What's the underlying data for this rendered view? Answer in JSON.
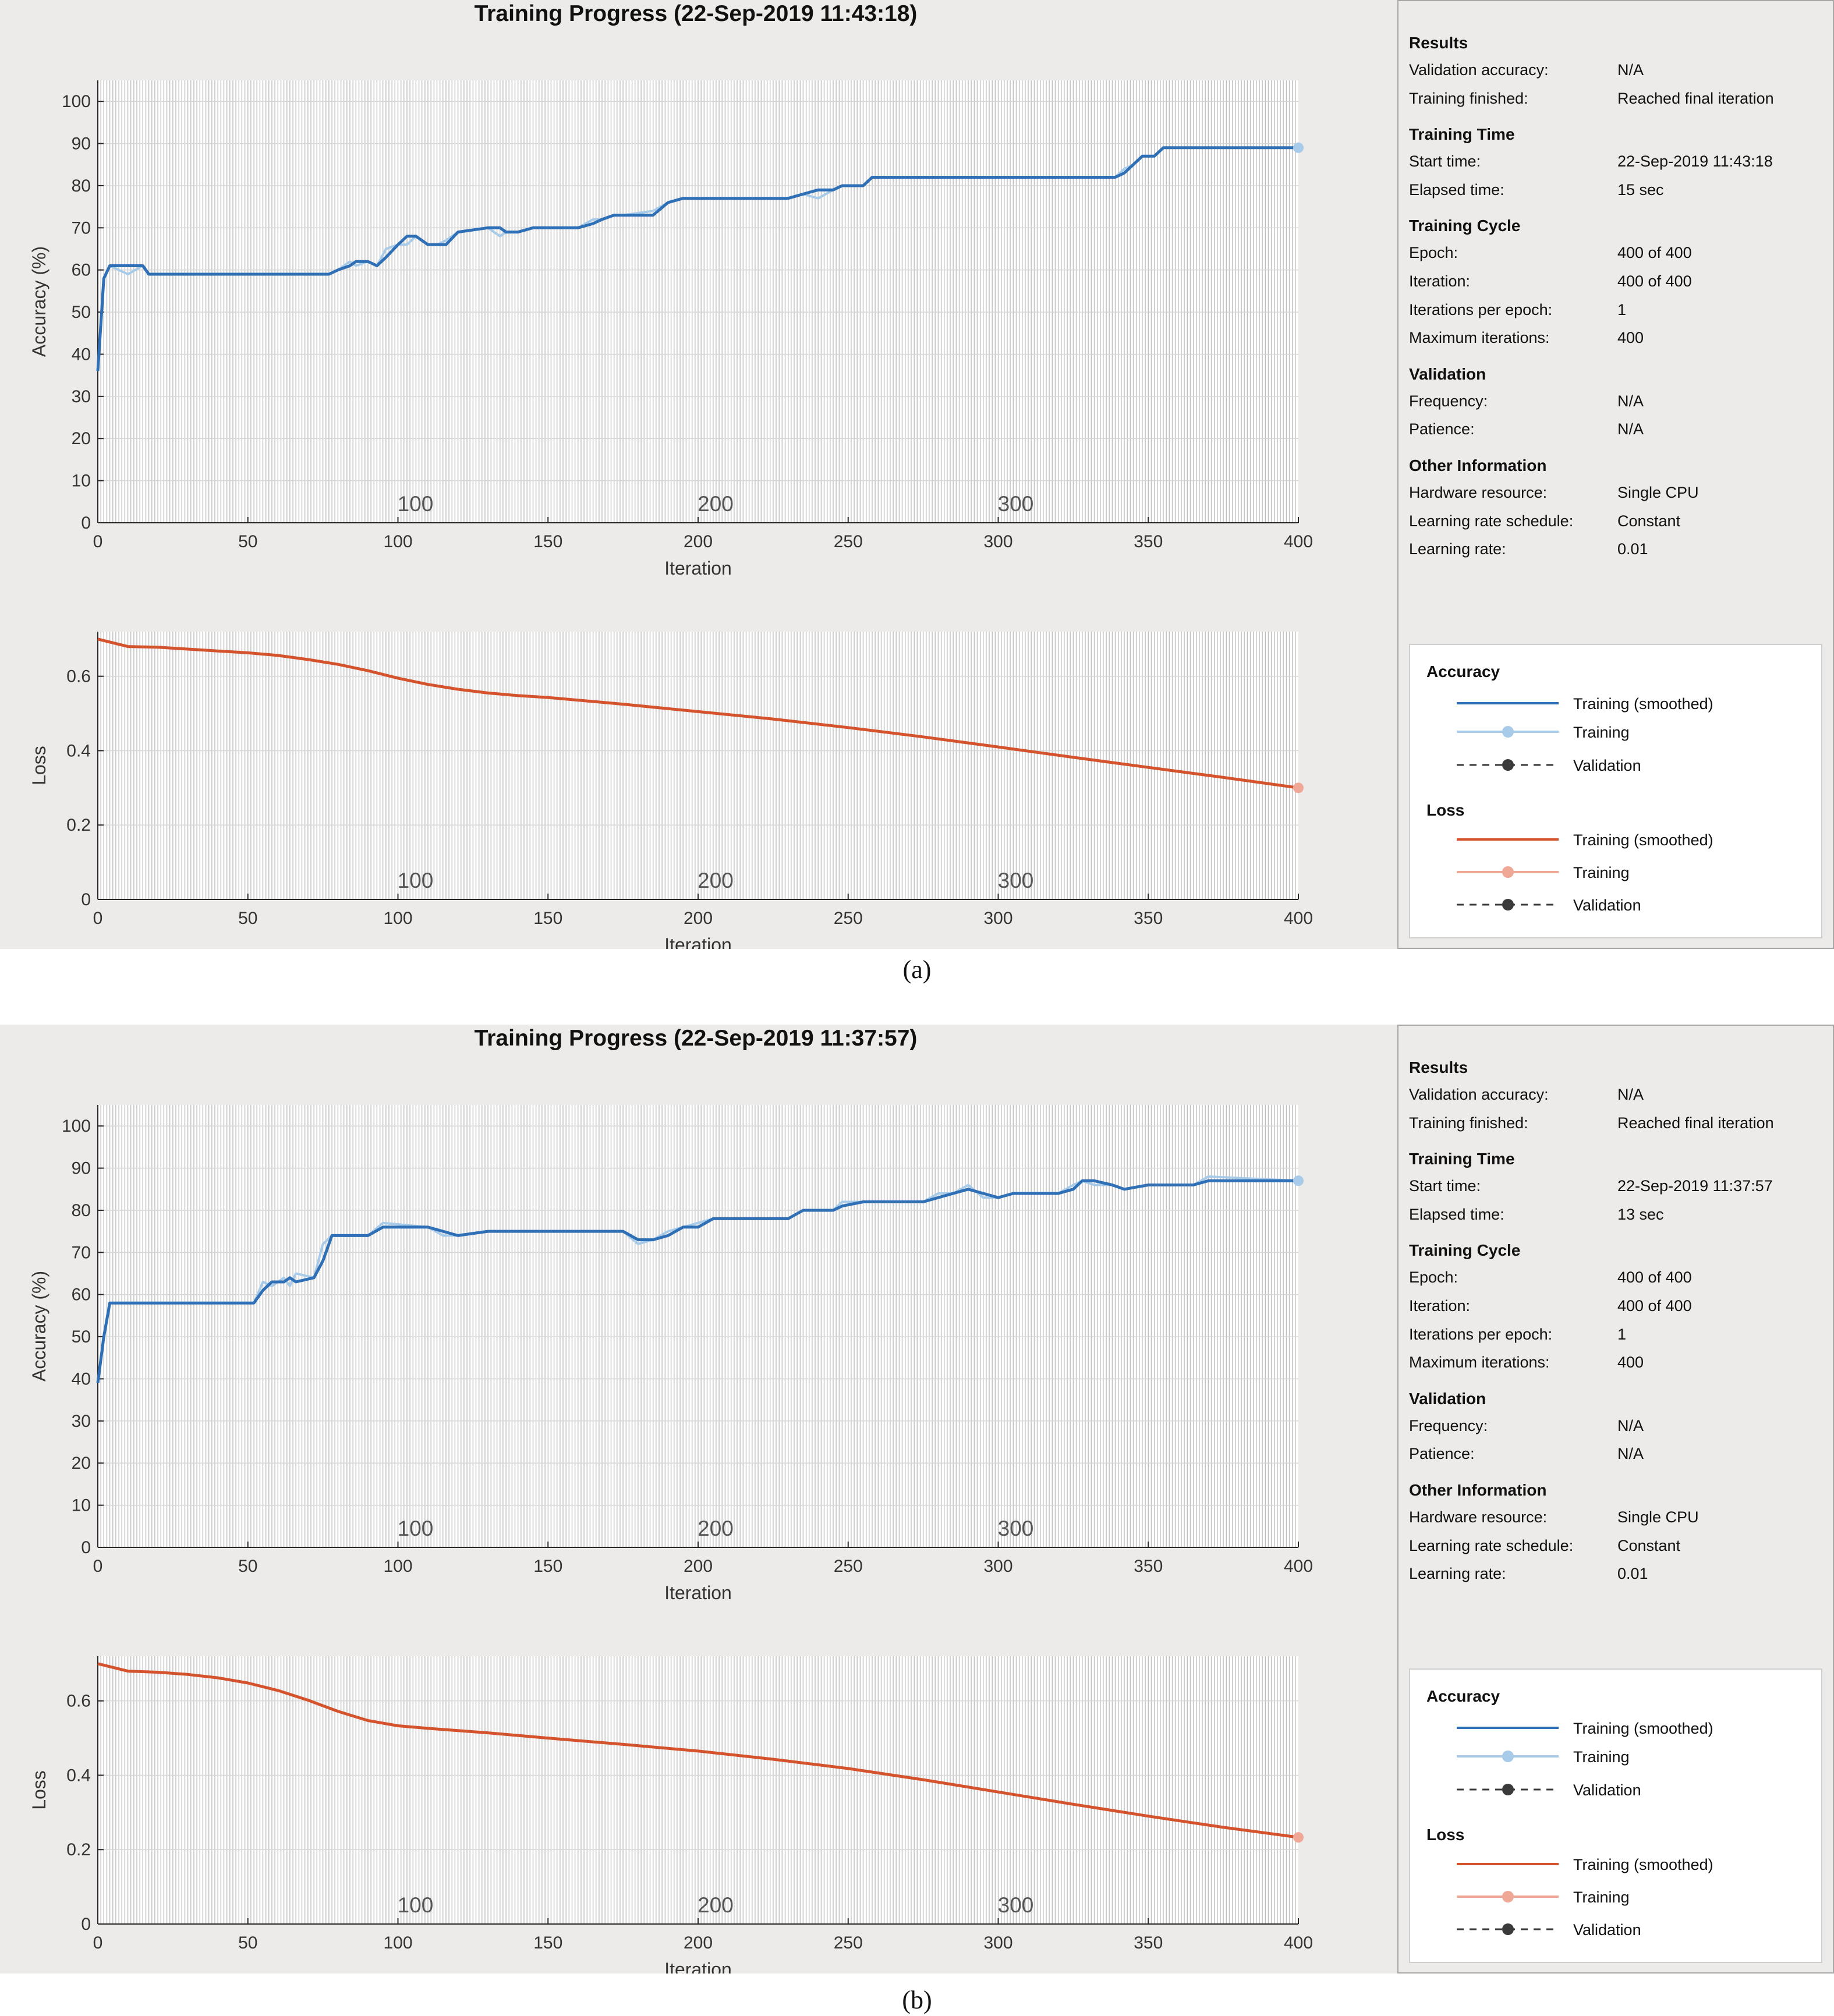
{
  "figures": [
    {
      "id": "a",
      "title": "Training Progress (22-Sep-2019 11:43:18)",
      "caption": "(a)",
      "info": [
        {
          "heading": "Results",
          "rows": [
            [
              "Validation accuracy:",
              "N/A"
            ],
            [
              "Training finished:",
              "Reached final iteration"
            ]
          ]
        },
        {
          "heading": "Training Time",
          "rows": [
            [
              "Start time:",
              "22-Sep-2019 11:43:18"
            ],
            [
              "Elapsed time:",
              "15 sec"
            ]
          ]
        },
        {
          "heading": "Training Cycle",
          "rows": [
            [
              "Epoch:",
              "400 of 400"
            ],
            [
              "Iteration:",
              "400 of 400"
            ],
            [
              "Iterations per epoch:",
              "1"
            ],
            [
              "Maximum iterations:",
              "400"
            ]
          ]
        },
        {
          "heading": "Validation",
          "rows": [
            [
              "Frequency:",
              "N/A"
            ],
            [
              "Patience:",
              "N/A"
            ]
          ]
        },
        {
          "heading": "Other Information",
          "rows": [
            [
              "Hardware resource:",
              "Single CPU"
            ],
            [
              "Learning rate schedule:",
              "Constant"
            ],
            [
              "Learning rate:",
              "0.01"
            ]
          ]
        }
      ],
      "legend": {
        "accuracy_heading": "Accuracy",
        "loss_heading": "Loss",
        "smoothed_label": "Training (smoothed)",
        "training_label": "Training",
        "validation_label": "Validation"
      }
    },
    {
      "id": "b",
      "title": "Training Progress (22-Sep-2019 11:37:57)",
      "caption": "(b)",
      "info": [
        {
          "heading": "Results",
          "rows": [
            [
              "Validation accuracy:",
              "N/A"
            ],
            [
              "Training finished:",
              "Reached final iteration"
            ]
          ]
        },
        {
          "heading": "Training Time",
          "rows": [
            [
              "Start time:",
              "22-Sep-2019 11:37:57"
            ],
            [
              "Elapsed time:",
              "13 sec"
            ]
          ]
        },
        {
          "heading": "Training Cycle",
          "rows": [
            [
              "Epoch:",
              "400 of 400"
            ],
            [
              "Iteration:",
              "400 of 400"
            ],
            [
              "Iterations per epoch:",
              "1"
            ],
            [
              "Maximum iterations:",
              "400"
            ]
          ]
        },
        {
          "heading": "Validation",
          "rows": [
            [
              "Frequency:",
              "N/A"
            ],
            [
              "Patience:",
              "N/A"
            ]
          ]
        },
        {
          "heading": "Other Information",
          "rows": [
            [
              "Hardware resource:",
              "Single CPU"
            ],
            [
              "Learning rate schedule:",
              "Constant"
            ],
            [
              "Learning rate:",
              "0.01"
            ]
          ]
        }
      ],
      "legend": {
        "accuracy_heading": "Accuracy",
        "loss_heading": "Loss",
        "smoothed_label": "Training (smoothed)",
        "training_label": "Training",
        "validation_label": "Validation"
      }
    }
  ],
  "colors": {
    "accuracy_smoothed": "#2f6fb5",
    "accuracy_raw": "#a7cbe8",
    "loss_smoothed": "#d4532d",
    "loss_raw": "#f0a896",
    "validation": "#3a3a3a",
    "epoch_lines": "#bdbdbd"
  },
  "chart_data": [
    {
      "type": "line",
      "figure": "a",
      "panel": "accuracy",
      "xlabel": "Iteration",
      "ylabel": "Accuracy (%)",
      "xlim": [
        0,
        400
      ],
      "ylim": [
        0,
        105
      ],
      "xticks": [
        0,
        50,
        100,
        150,
        200,
        250,
        300,
        350,
        400
      ],
      "yticks": [
        0,
        10,
        20,
        30,
        40,
        50,
        60,
        70,
        80,
        90,
        100
      ],
      "epoch_labels": [
        100,
        200,
        300
      ],
      "series": [
        {
          "name": "Training (smoothed)",
          "x": [
            0,
            2,
            4,
            10,
            15,
            17,
            20,
            50,
            77,
            80,
            84,
            86,
            90,
            93,
            96,
            100,
            103,
            106,
            110,
            113,
            116,
            120,
            130,
            134,
            136,
            140,
            145,
            160,
            165,
            168,
            172,
            175,
            185,
            190,
            195,
            230,
            235,
            240,
            245,
            248,
            255,
            258,
            262,
            280,
            300,
            320,
            339,
            342,
            345,
            348,
            352,
            355,
            370,
            400
          ],
          "y": [
            36,
            58,
            61,
            61,
            61,
            59,
            59,
            59,
            59,
            60,
            61,
            62,
            62,
            61,
            63,
            66,
            68,
            68,
            66,
            66,
            66,
            69,
            70,
            70,
            69,
            69,
            70,
            70,
            71,
            72,
            73,
            73,
            73,
            76,
            77,
            77,
            78,
            79,
            79,
            80,
            80,
            82,
            82,
            82,
            82,
            82,
            82,
            83,
            85,
            87,
            87,
            89,
            89,
            89
          ]
        },
        {
          "name": "Training",
          "x": [
            0,
            2,
            4,
            10,
            15,
            17,
            20,
            50,
            77,
            80,
            84,
            86,
            90,
            93,
            96,
            100,
            103,
            106,
            110,
            113,
            116,
            120,
            130,
            134,
            136,
            140,
            145,
            160,
            165,
            168,
            172,
            175,
            185,
            190,
            195,
            230,
            235,
            240,
            245,
            248,
            255,
            258,
            262,
            280,
            300,
            320,
            339,
            342,
            345,
            348,
            352,
            355,
            370,
            400
          ],
          "y": [
            36,
            58,
            61,
            59,
            61,
            59,
            59,
            59,
            59,
            60,
            62,
            61,
            62,
            61,
            65,
            66,
            66,
            68,
            66,
            66,
            67,
            69,
            70,
            68,
            69,
            69,
            70,
            70,
            72,
            72,
            73,
            73,
            74,
            76,
            77,
            77,
            78,
            77,
            79,
            80,
            80,
            82,
            82,
            82,
            82,
            82,
            82,
            84,
            85,
            87,
            87,
            89,
            89,
            89
          ]
        }
      ]
    },
    {
      "type": "line",
      "figure": "a",
      "panel": "loss",
      "xlabel": "Iteration",
      "ylabel": "Loss",
      "xlim": [
        0,
        400
      ],
      "ylim": [
        0,
        0.72
      ],
      "xticks": [
        0,
        50,
        100,
        150,
        200,
        250,
        300,
        350,
        400
      ],
      "yticks": [
        0,
        0.2,
        0.4,
        0.6
      ],
      "epoch_labels": [
        100,
        200,
        300
      ],
      "series": [
        {
          "name": "Training (smoothed)",
          "x": [
            0,
            10,
            20,
            30,
            40,
            50,
            60,
            70,
            80,
            90,
            100,
            110,
            120,
            130,
            140,
            150,
            175,
            200,
            225,
            250,
            275,
            300,
            325,
            350,
            375,
            400
          ],
          "y": [
            0.7,
            0.68,
            0.678,
            0.673,
            0.668,
            0.663,
            0.656,
            0.645,
            0.632,
            0.615,
            0.595,
            0.578,
            0.565,
            0.555,
            0.548,
            0.543,
            0.525,
            0.505,
            0.485,
            0.462,
            0.437,
            0.41,
            0.382,
            0.355,
            0.328,
            0.3
          ]
        },
        {
          "name": "Training",
          "x": [
            0,
            10,
            20,
            30,
            40,
            50,
            60,
            70,
            80,
            90,
            100,
            110,
            120,
            130,
            140,
            150,
            175,
            200,
            225,
            250,
            275,
            300,
            325,
            350,
            375,
            400
          ],
          "y": [
            0.7,
            0.68,
            0.678,
            0.673,
            0.668,
            0.663,
            0.656,
            0.645,
            0.632,
            0.615,
            0.595,
            0.578,
            0.565,
            0.555,
            0.548,
            0.543,
            0.525,
            0.505,
            0.485,
            0.462,
            0.437,
            0.41,
            0.382,
            0.355,
            0.328,
            0.3
          ]
        }
      ]
    },
    {
      "type": "line",
      "figure": "b",
      "panel": "accuracy",
      "xlabel": "Iteration",
      "ylabel": "Accuracy (%)",
      "xlim": [
        0,
        400
      ],
      "ylim": [
        0,
        105
      ],
      "xticks": [
        0,
        50,
        100,
        150,
        200,
        250,
        300,
        350,
        400
      ],
      "yticks": [
        0,
        10,
        20,
        30,
        40,
        50,
        60,
        70,
        80,
        90,
        100
      ],
      "epoch_labels": [
        100,
        200,
        300
      ],
      "series": [
        {
          "name": "Training (smoothed)",
          "x": [
            0,
            2,
            4,
            10,
            30,
            52,
            55,
            58,
            62,
            64,
            66,
            72,
            75,
            78,
            90,
            95,
            110,
            115,
            120,
            130,
            150,
            175,
            180,
            185,
            190,
            195,
            200,
            205,
            230,
            235,
            245,
            248,
            255,
            275,
            280,
            285,
            290,
            295,
            300,
            305,
            320,
            325,
            328,
            332,
            338,
            342,
            350,
            365,
            370,
            400
          ],
          "y": [
            39,
            50,
            58,
            58,
            58,
            58,
            61,
            63,
            63,
            64,
            63,
            64,
            68,
            74,
            74,
            76,
            76,
            75,
            74,
            75,
            75,
            75,
            73,
            73,
            74,
            76,
            76,
            78,
            78,
            80,
            80,
            81,
            82,
            82,
            83,
            84,
            85,
            84,
            83,
            84,
            84,
            85,
            87,
            87,
            86,
            85,
            86,
            86,
            87,
            87
          ]
        },
        {
          "name": "Training",
          "x": [
            0,
            2,
            4,
            10,
            30,
            52,
            55,
            58,
            62,
            64,
            66,
            72,
            75,
            78,
            90,
            95,
            110,
            115,
            120,
            130,
            150,
            175,
            180,
            185,
            190,
            195,
            200,
            205,
            230,
            235,
            245,
            248,
            255,
            275,
            280,
            285,
            290,
            295,
            300,
            305,
            320,
            325,
            328,
            332,
            338,
            342,
            350,
            365,
            370,
            400
          ],
          "y": [
            39,
            50,
            58,
            58,
            58,
            58,
            63,
            62,
            64,
            62,
            65,
            64,
            72,
            74,
            74,
            77,
            76,
            74,
            74,
            75,
            75,
            75,
            72,
            73,
            75,
            76,
            77,
            78,
            78,
            80,
            80,
            82,
            82,
            82,
            84,
            84,
            86,
            83,
            83,
            84,
            84,
            86,
            87,
            86,
            86,
            85,
            86,
            86,
            88,
            87
          ]
        }
      ]
    },
    {
      "type": "line",
      "figure": "b",
      "panel": "loss",
      "xlabel": "Iteration",
      "ylabel": "Loss",
      "xlim": [
        0,
        400
      ],
      "ylim": [
        0,
        0.72
      ],
      "xticks": [
        0,
        50,
        100,
        150,
        200,
        250,
        300,
        350,
        400
      ],
      "yticks": [
        0,
        0.2,
        0.4,
        0.6
      ],
      "epoch_labels": [
        100,
        200,
        300
      ],
      "series": [
        {
          "name": "Training (smoothed)",
          "x": [
            0,
            10,
            20,
            30,
            40,
            50,
            60,
            70,
            80,
            90,
            100,
            110,
            120,
            130,
            140,
            150,
            175,
            200,
            225,
            250,
            275,
            300,
            325,
            350,
            375,
            400
          ],
          "y": [
            0.7,
            0.68,
            0.677,
            0.671,
            0.662,
            0.648,
            0.628,
            0.602,
            0.572,
            0.547,
            0.533,
            0.526,
            0.52,
            0.514,
            0.507,
            0.5,
            0.483,
            0.465,
            0.443,
            0.418,
            0.388,
            0.355,
            0.322,
            0.29,
            0.26,
            0.233
          ]
        },
        {
          "name": "Training",
          "x": [
            0,
            10,
            20,
            30,
            40,
            50,
            60,
            70,
            80,
            90,
            100,
            110,
            120,
            130,
            140,
            150,
            175,
            200,
            225,
            250,
            275,
            300,
            325,
            350,
            375,
            400
          ],
          "y": [
            0.7,
            0.68,
            0.677,
            0.671,
            0.662,
            0.648,
            0.628,
            0.602,
            0.572,
            0.547,
            0.533,
            0.526,
            0.52,
            0.514,
            0.507,
            0.5,
            0.483,
            0.465,
            0.443,
            0.418,
            0.388,
            0.355,
            0.322,
            0.29,
            0.26,
            0.233
          ]
        }
      ]
    }
  ]
}
